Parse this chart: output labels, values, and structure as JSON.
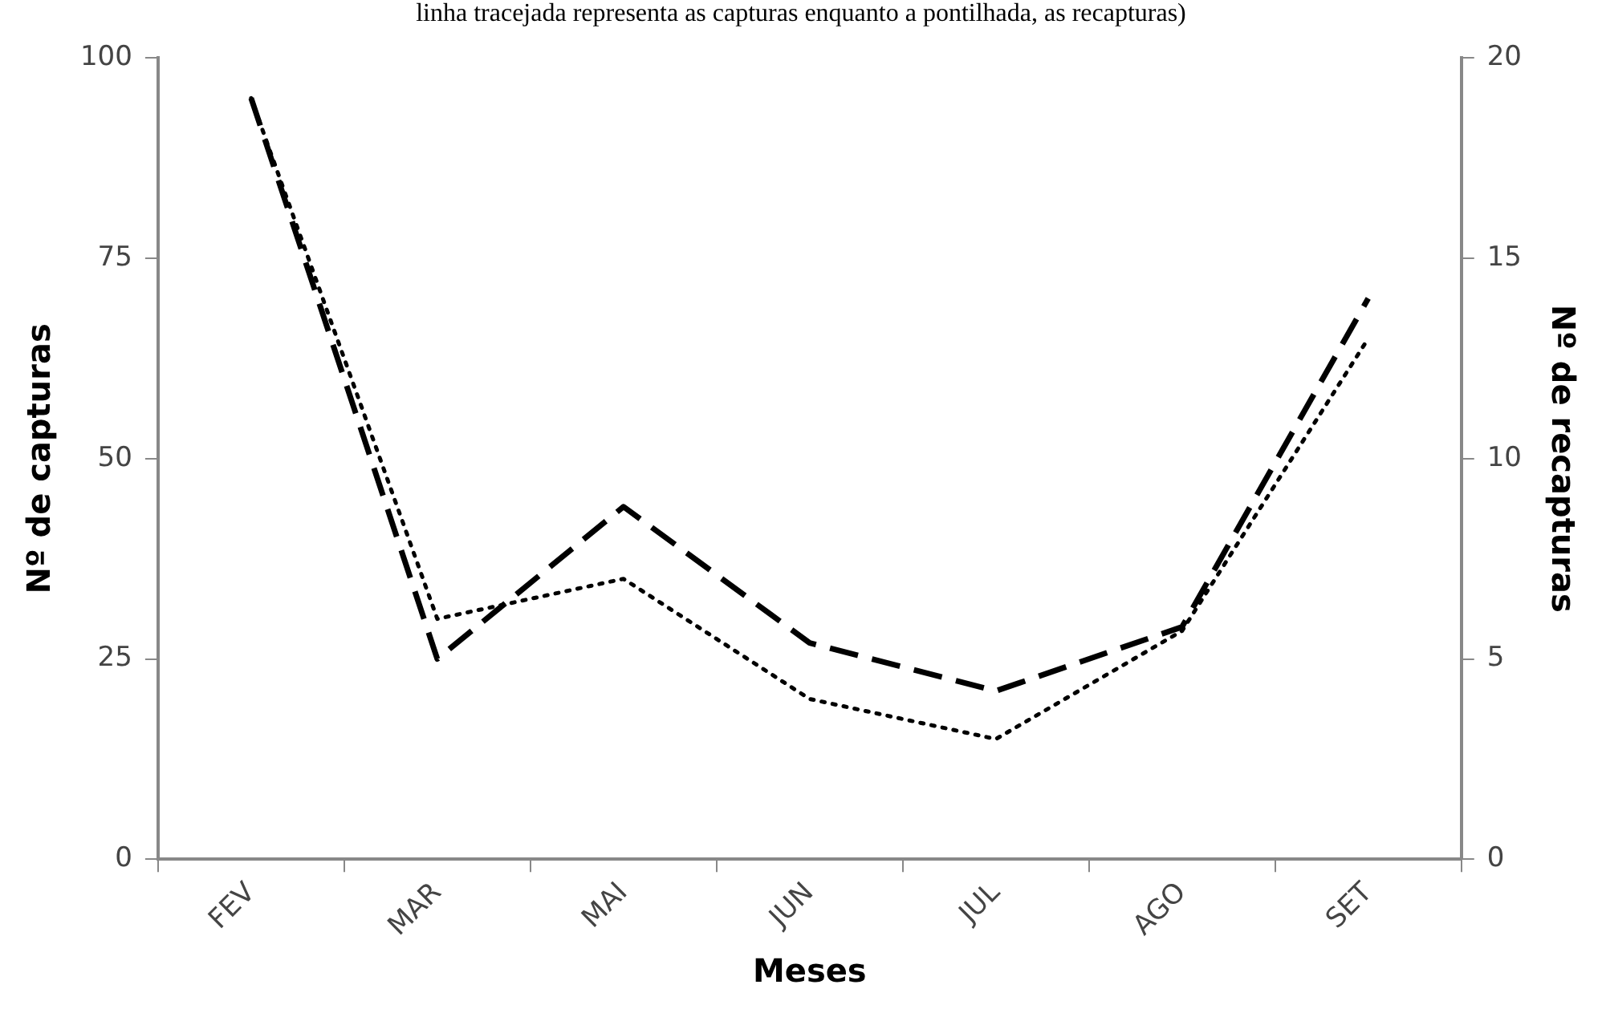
{
  "chart_data": {
    "type": "line",
    "title": "linha tracejada representa as capturas enquanto a pontilhada, as recapturas)",
    "xlabel": "Meses",
    "ylabel": "Nº de capturas",
    "y2label": "Nº de recapturas",
    "categories": [
      "FEV",
      "MAR",
      "MAI",
      "JUN",
      "JUL",
      "AGO",
      "SET"
    ],
    "series": [
      {
        "color": "#000000",
        "line_style": "dashed",
        "values": [
          95,
          25,
          44,
          27,
          21,
          29,
          70
        ]
      },
      {
        "color": "#000000",
        "line_style": "dotted",
        "axis": "y2",
        "values": [
          19,
          6,
          7,
          4,
          3,
          5.7,
          13
        ]
      }
    ],
    "ylim": [
      0,
      100
    ],
    "yticks": [
      0,
      25,
      50,
      75,
      100
    ],
    "y2lim": [
      0,
      20
    ],
    "y2ticks": [
      0,
      5,
      10,
      15,
      20
    ],
    "grid": false,
    "legend": false,
    "marker": "none"
  }
}
